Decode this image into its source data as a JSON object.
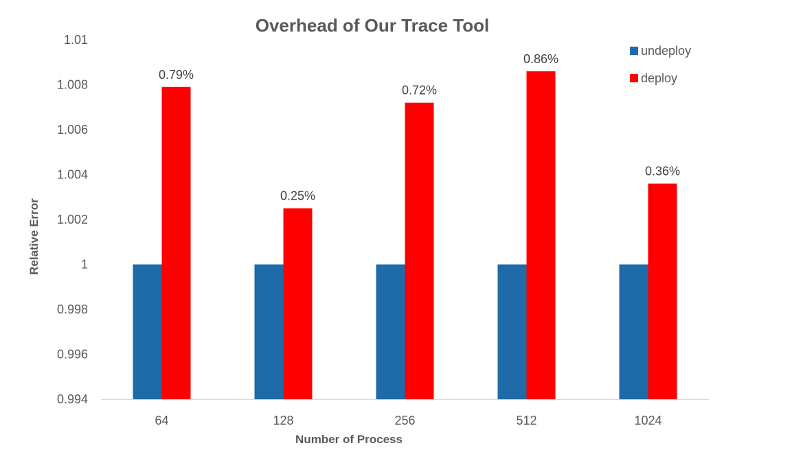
{
  "chart_data": {
    "type": "bar",
    "title": "Overhead of Our Trace Tool",
    "xlabel": "Number of Process",
    "ylabel": "Relative Error",
    "categories": [
      "64",
      "128",
      "256",
      "512",
      "1024"
    ],
    "series": [
      {
        "name": "undeploy",
        "color": "#1f6aa8",
        "values": [
          1,
          1,
          1,
          1,
          1
        ]
      },
      {
        "name": "deploy",
        "color": "#ff0000",
        "values": [
          1.0079,
          1.0025,
          1.0072,
          1.0086,
          1.0036
        ],
        "data_labels": [
          "0.79%",
          "0.25%",
          "0.72%",
          "0.86%",
          "0.36%"
        ]
      }
    ],
    "ylim": [
      0.994,
      1.01
    ],
    "yticks": [
      "0.994",
      "0.996",
      "0.998",
      "1",
      "1.002",
      "1.004",
      "1.006",
      "1.008",
      "1.01"
    ],
    "grid": false,
    "legend_position": "top-right"
  }
}
